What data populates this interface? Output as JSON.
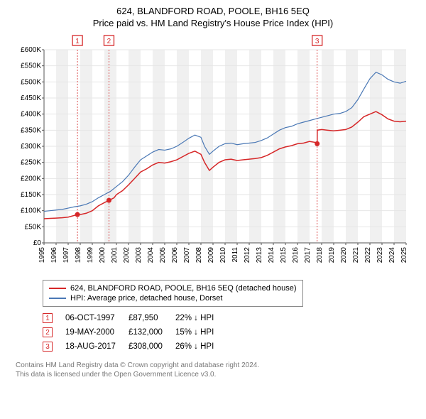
{
  "title": "624, BLANDFORD ROAD, POOLE, BH16 5EQ",
  "subtitle": "Price paid vs. HM Land Registry's House Price Index (HPI)",
  "chart": {
    "type": "line",
    "background_color": "#ffffff",
    "grid_color": "#e6e6e6",
    "axis_color": "#555555",
    "ylim": [
      0,
      600000
    ],
    "ytick_step": 50000,
    "ytick_labels": [
      "£0",
      "£50K",
      "£100K",
      "£150K",
      "£200K",
      "£250K",
      "£300K",
      "£350K",
      "£400K",
      "£450K",
      "£500K",
      "£550K",
      "£600K"
    ],
    "xlim": [
      1995,
      2025
    ],
    "xtick_step": 1,
    "xtick_labels": [
      "1995",
      "1996",
      "1997",
      "1998",
      "1999",
      "2000",
      "2001",
      "2002",
      "2003",
      "2004",
      "2005",
      "2006",
      "2007",
      "2008",
      "2009",
      "2010",
      "2011",
      "2012",
      "2013",
      "2014",
      "2015",
      "2016",
      "2017",
      "2018",
      "2019",
      "2020",
      "2021",
      "2022",
      "2023",
      "2024",
      "2025"
    ],
    "tick_fontsize": 10,
    "series": [
      {
        "id": "property",
        "label": "624, BLANDFORD ROAD, POOLE, BH16 5EQ (detached house)",
        "color": "#d62728",
        "line_width": 1.5,
        "data": [
          [
            1995,
            75000
          ],
          [
            1995.5,
            76000
          ],
          [
            1996,
            77000
          ],
          [
            1996.5,
            78000
          ],
          [
            1997,
            80000
          ],
          [
            1997.77,
            87950
          ],
          [
            1998,
            88000
          ],
          [
            1998.5,
            92000
          ],
          [
            1999,
            100000
          ],
          [
            1999.5,
            115000
          ],
          [
            2000,
            125000
          ],
          [
            2000.38,
            132000
          ],
          [
            2000.8,
            140000
          ],
          [
            2001,
            150000
          ],
          [
            2001.5,
            162000
          ],
          [
            2002,
            180000
          ],
          [
            2002.5,
            200000
          ],
          [
            2003,
            220000
          ],
          [
            2003.5,
            230000
          ],
          [
            2004,
            242000
          ],
          [
            2004.5,
            250000
          ],
          [
            2005,
            248000
          ],
          [
            2005.5,
            252000
          ],
          [
            2006,
            258000
          ],
          [
            2006.5,
            268000
          ],
          [
            2007,
            278000
          ],
          [
            2007.5,
            285000
          ],
          [
            2008,
            275000
          ],
          [
            2008.3,
            250000
          ],
          [
            2008.7,
            225000
          ],
          [
            2009,
            235000
          ],
          [
            2009.5,
            250000
          ],
          [
            2010,
            258000
          ],
          [
            2010.5,
            260000
          ],
          [
            2011,
            256000
          ],
          [
            2011.5,
            258000
          ],
          [
            2012,
            260000
          ],
          [
            2012.5,
            262000
          ],
          [
            2013,
            265000
          ],
          [
            2013.5,
            272000
          ],
          [
            2014,
            282000
          ],
          [
            2014.5,
            292000
          ],
          [
            2015,
            298000
          ],
          [
            2015.5,
            302000
          ],
          [
            2016,
            308000
          ],
          [
            2016.5,
            310000
          ],
          [
            2017,
            315000
          ],
          [
            2017.5,
            312000
          ],
          [
            2017.63,
            308000
          ],
          [
            2017.64,
            350000
          ],
          [
            2018,
            352000
          ],
          [
            2018.5,
            350000
          ],
          [
            2019,
            348000
          ],
          [
            2019.5,
            350000
          ],
          [
            2020,
            352000
          ],
          [
            2020.5,
            360000
          ],
          [
            2021,
            375000
          ],
          [
            2021.5,
            392000
          ],
          [
            2022,
            400000
          ],
          [
            2022.5,
            408000
          ],
          [
            2023,
            398000
          ],
          [
            2023.5,
            385000
          ],
          [
            2024,
            378000
          ],
          [
            2024.5,
            376000
          ],
          [
            2025,
            378000
          ]
        ]
      },
      {
        "id": "hpi",
        "label": "HPI: Average price, detached house, Dorset",
        "color": "#4a78b5",
        "line_width": 1.2,
        "data": [
          [
            1995,
            98000
          ],
          [
            1995.5,
            100000
          ],
          [
            1996,
            102000
          ],
          [
            1996.5,
            104000
          ],
          [
            1997,
            108000
          ],
          [
            1997.5,
            112000
          ],
          [
            1998,
            115000
          ],
          [
            1998.5,
            120000
          ],
          [
            1999,
            128000
          ],
          [
            1999.5,
            140000
          ],
          [
            2000,
            150000
          ],
          [
            2000.5,
            160000
          ],
          [
            2001,
            175000
          ],
          [
            2001.5,
            190000
          ],
          [
            2002,
            210000
          ],
          [
            2002.5,
            235000
          ],
          [
            2003,
            258000
          ],
          [
            2003.5,
            270000
          ],
          [
            2004,
            282000
          ],
          [
            2004.5,
            290000
          ],
          [
            2005,
            288000
          ],
          [
            2005.5,
            292000
          ],
          [
            2006,
            300000
          ],
          [
            2006.5,
            312000
          ],
          [
            2007,
            325000
          ],
          [
            2007.5,
            335000
          ],
          [
            2008,
            328000
          ],
          [
            2008.3,
            300000
          ],
          [
            2008.7,
            275000
          ],
          [
            2009,
            285000
          ],
          [
            2009.5,
            300000
          ],
          [
            2010,
            308000
          ],
          [
            2010.5,
            310000
          ],
          [
            2011,
            305000
          ],
          [
            2011.5,
            308000
          ],
          [
            2012,
            310000
          ],
          [
            2012.5,
            312000
          ],
          [
            2013,
            318000
          ],
          [
            2013.5,
            326000
          ],
          [
            2014,
            338000
          ],
          [
            2014.5,
            350000
          ],
          [
            2015,
            358000
          ],
          [
            2015.5,
            362000
          ],
          [
            2016,
            370000
          ],
          [
            2016.5,
            375000
          ],
          [
            2017,
            380000
          ],
          [
            2017.5,
            385000
          ],
          [
            2018,
            390000
          ],
          [
            2018.5,
            395000
          ],
          [
            2019,
            400000
          ],
          [
            2019.5,
            402000
          ],
          [
            2020,
            408000
          ],
          [
            2020.5,
            420000
          ],
          [
            2021,
            445000
          ],
          [
            2021.5,
            478000
          ],
          [
            2022,
            510000
          ],
          [
            2022.5,
            530000
          ],
          [
            2023,
            522000
          ],
          [
            2023.5,
            508000
          ],
          [
            2024,
            500000
          ],
          [
            2024.5,
            496000
          ],
          [
            2025,
            502000
          ]
        ]
      }
    ],
    "sale_markers": [
      {
        "n": "1",
        "year": 1997.77,
        "price": 87950
      },
      {
        "n": "2",
        "year": 2000.38,
        "price": 132000
      },
      {
        "n": "3",
        "year": 2017.63,
        "price": 308000
      }
    ],
    "marker_dot_color": "#d62728",
    "marker_line_color": "#d62728",
    "marker_box_border": "#d62728",
    "marker_box_text": "#d62728",
    "shade_color": "#f0f0f0"
  },
  "legend": {
    "items": [
      {
        "color": "#d62728",
        "label": "624, BLANDFORD ROAD, POOLE, BH16 5EQ (detached house)"
      },
      {
        "color": "#4a78b5",
        "label": "HPI: Average price, detached house, Dorset"
      }
    ]
  },
  "sales": [
    {
      "n": "1",
      "date": "06-OCT-1997",
      "price": "£87,950",
      "delta": "22% ↓ HPI"
    },
    {
      "n": "2",
      "date": "19-MAY-2000",
      "price": "£132,000",
      "delta": "15% ↓ HPI"
    },
    {
      "n": "3",
      "date": "18-AUG-2017",
      "price": "£308,000",
      "delta": "26% ↓ HPI"
    }
  ],
  "footer1": "Contains HM Land Registry data © Crown copyright and database right 2024.",
  "footer2": "This data is licensed under the Open Government Licence v3.0."
}
